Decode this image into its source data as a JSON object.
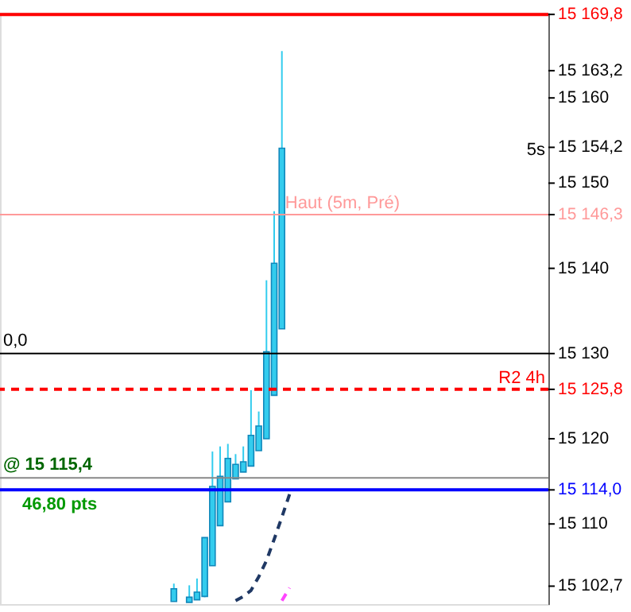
{
  "chart_data": {
    "type": "candlestick",
    "categories": [
      null,
      null,
      null,
      null,
      null,
      null,
      null,
      null,
      null,
      null,
      null,
      null,
      null,
      null,
      null,
      null,
      null,
      null,
      null,
      null,
      null,
      null,
      null,
      null,
      null,
      null,
      null,
      null,
      null,
      null,
      null,
      null,
      null,
      null,
      null,
      null,
      null,
      null,
      null,
      null,
      null,
      null,
      null,
      null,
      null,
      null,
      null,
      null,
      null,
      null,
      null,
      null,
      null,
      null,
      null,
      null,
      null,
      null,
      null,
      null,
      null,
      null,
      null,
      null,
      null,
      null,
      null,
      null,
      null
    ],
    "ohlc": [
      null,
      null,
      null,
      null,
      null,
      null,
      null,
      null,
      null,
      null,
      null,
      null,
      null,
      null,
      null,
      null,
      null,
      null,
      null,
      null,
      null,
      [
        15100.9,
        15103.0,
        15100.9,
        15102.4
      ],
      null,
      [
        15100.8,
        15102.8,
        15100.8,
        15101.4
      ],
      [
        15101.1,
        15103.6,
        15101.1,
        15102.0
      ],
      [
        15101.5,
        15108.4,
        15101.4,
        15108.4
      ],
      [
        15105.1,
        15118.5,
        15105.1,
        15114.4
      ],
      [
        15109.8,
        15119.1,
        15109.8,
        15115.6
      ],
      [
        15112.6,
        15119.4,
        15112.6,
        15117.7
      ],
      [
        15115.3,
        15118.2,
        15115.3,
        15117.0
      ],
      [
        15116.1,
        15119.1,
        15116.1,
        15117.3
      ],
      [
        15116.8,
        15125.7,
        15116.8,
        15120.4
      ],
      [
        15118.6,
        15123.2,
        15118.6,
        15121.5
      ],
      [
        15120.0,
        15138.6,
        15120.0,
        15130.2
      ],
      [
        15125.1,
        15146.7,
        15125.1,
        15140.6
      ],
      [
        15132.9,
        15165.5,
        15132.9,
        15154.1
      ],
      null,
      null,
      null,
      null,
      null,
      null,
      null,
      null,
      null,
      null,
      null,
      null,
      null,
      null,
      null,
      null,
      null,
      null,
      null,
      null,
      null,
      null,
      null,
      null,
      null,
      null,
      null,
      null,
      null,
      null,
      null,
      null,
      null
    ],
    "color": "#33ccee",
    "series": [
      {
        "type": "line",
        "color": "#1f3864",
        "line_style": "dashed",
        "values": [
          null,
          null,
          null,
          null,
          null,
          null,
          null,
          null,
          null,
          null,
          null,
          null,
          null,
          null,
          null,
          null,
          null,
          null,
          null,
          null,
          null,
          null,
          null,
          null,
          null,
          null,
          null,
          null,
          null,
          15101.0,
          15101.5,
          15102.2,
          15103.8,
          15105.7,
          15108.2,
          15110.8,
          15113.5,
          null,
          null,
          null,
          null,
          null,
          null,
          null,
          null,
          null,
          null,
          null,
          null,
          null,
          null,
          null,
          null,
          null,
          null,
          null,
          null,
          null,
          null,
          null,
          null,
          null,
          null,
          null,
          null,
          null,
          null,
          null,
          null
        ]
      },
      {
        "type": "line",
        "color": "#ff44ff",
        "line_style": "dashed",
        "values": [
          null,
          null,
          null,
          null,
          null,
          null,
          null,
          null,
          null,
          null,
          null,
          null,
          null,
          null,
          null,
          null,
          null,
          null,
          null,
          null,
          null,
          null,
          null,
          null,
          null,
          null,
          null,
          null,
          null,
          null,
          null,
          null,
          null,
          null,
          null,
          15101.0,
          15102.5,
          null,
          null,
          null,
          null,
          null,
          null,
          null,
          null,
          null,
          null,
          null,
          null,
          null,
          null,
          null,
          null,
          null,
          null,
          null,
          null,
          null,
          null,
          null,
          null,
          null,
          null,
          null,
          null,
          null,
          null,
          null,
          null
        ]
      }
    ],
    "ylim": [
      15100.6,
      15170
    ],
    "yticks": [
      {
        "value": 15102.7,
        "label": "15 102,7"
      },
      {
        "value": 15110,
        "label": "15 110"
      },
      {
        "value": 15114.0,
        "label": "15 114,0"
      },
      {
        "value": 15120,
        "label": "15 120"
      },
      {
        "value": 15125.8,
        "label": "15 125,8"
      },
      {
        "value": 15130,
        "label": "15 130"
      },
      {
        "value": 15140,
        "label": "15 140"
      },
      {
        "value": 15146.3,
        "label": "15 146,3"
      },
      {
        "value": 15150,
        "label": "15 150"
      },
      {
        "value": 15154.2,
        "label": "15 154,2"
      },
      {
        "value": 15160,
        "label": "15 160"
      },
      {
        "value": 15163.2,
        "label": "15 163,2"
      },
      {
        "value": 15169.8,
        "label": "15 169,8"
      }
    ],
    "ref_lines": [
      {
        "axis": "y",
        "value": 15169.8,
        "color": "#ff0000",
        "line_style": "solid"
      },
      {
        "axis": "y",
        "value": 15146.3,
        "label": "Haut (5m, Pré)",
        "color": "#ff9999",
        "line_style": "solid"
      },
      {
        "axis": "y",
        "value": 15130,
        "color": "#000000",
        "line_style": "solid"
      },
      {
        "axis": "y",
        "value": 15125.8,
        "label": "R2 4h",
        "color": "#ff0000",
        "line_style": "dashed"
      },
      {
        "axis": "y",
        "value": 15115.4,
        "label": "@ 15 115,4",
        "color": "#888888",
        "line_style": "solid"
      },
      {
        "axis": "y",
        "value": 15114.0,
        "color": "#0000ff",
        "line_style": "solid"
      }
    ],
    "annotations": [
      "0,0",
      "5s",
      "46,80 pts"
    ],
    "grid": false,
    "tick_labels": "y"
  }
}
